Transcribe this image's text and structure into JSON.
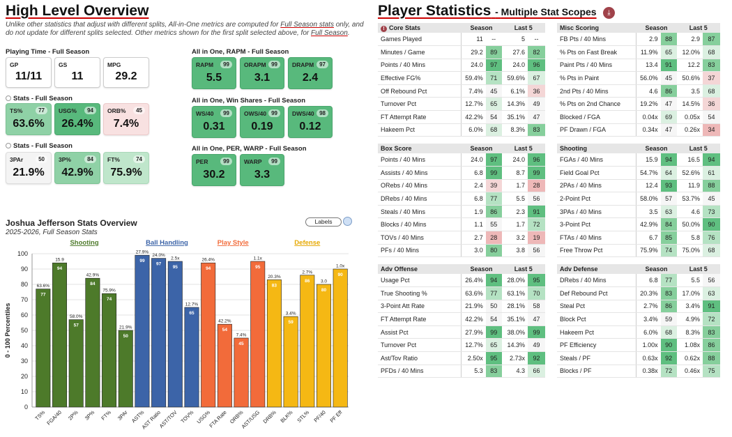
{
  "overview": {
    "title": "High Level Overview",
    "note_pre": "Unlike other statistics that adjust with different splits, All-in-One metrics are computed for ",
    "note_link1": "Full Season stats",
    "note_mid": " only, and do not update for different splits selected. Other metrics shown for the first split selected above, for ",
    "note_link2": "Full Season",
    "note_end": ".",
    "playing_time": {
      "label": "Playing Time - Full Season",
      "cards": [
        {
          "label": "GP",
          "value": "11/11"
        },
        {
          "label": "GS",
          "value": "11"
        },
        {
          "label": "MPG",
          "value": "29.2"
        }
      ]
    },
    "stats1": {
      "label": "Stats - Full Season",
      "cards": [
        {
          "label": "TS%",
          "value": "63.6%",
          "pct": "77",
          "tone": "g-mid"
        },
        {
          "label": "USG%",
          "value": "26.4%",
          "pct": "94",
          "tone": "g-dark"
        },
        {
          "label": "ORB%",
          "value": "7.4%",
          "pct": "45",
          "tone": "r-lite"
        }
      ]
    },
    "stats2": {
      "label": "Stats - Full Season",
      "cards": [
        {
          "label": "3PAr",
          "value": "21.9%",
          "pct": "50",
          "tone": "w-lite"
        },
        {
          "label": "3P%",
          "value": "42.9%",
          "pct": "84",
          "tone": "g-mid"
        },
        {
          "label": "FT%",
          "value": "75.9%",
          "pct": "74",
          "tone": "g-lite"
        }
      ]
    },
    "rapm": {
      "label": "All in One, RAPM - Full Season",
      "cards": [
        {
          "label": "RAPM",
          "value": "5.5",
          "pct": "99"
        },
        {
          "label": "ORAPM",
          "value": "3.1",
          "pct": "99"
        },
        {
          "label": "DRAPM",
          "value": "2.4",
          "pct": "97"
        }
      ]
    },
    "winshares": {
      "label": "All in One, Win Shares - Full Season",
      "cards": [
        {
          "label": "WS/40",
          "value": "0.31",
          "pct": "99"
        },
        {
          "label": "OWS/40",
          "value": "0.19",
          "pct": "99"
        },
        {
          "label": "DWS/40",
          "value": "0.12",
          "pct": "98"
        }
      ]
    },
    "perwarp": {
      "label": "All in One, PER, WARP - Full Season",
      "cards": [
        {
          "label": "PER",
          "value": "30.2",
          "pct": "99"
        },
        {
          "label": "WARP",
          "value": "3.3",
          "pct": "99"
        }
      ]
    }
  },
  "chart_header": {
    "title": "Joshua Jefferson Stats Overview",
    "subtitle": "2025-2026, Full Season Stats",
    "labels_button": "Labels"
  },
  "chart_data": {
    "type": "bar",
    "ylabel": "0 - 100 Percentiles",
    "ylim": [
      0,
      100
    ],
    "yticks": [
      0,
      10,
      20,
      30,
      40,
      50,
      60,
      70,
      80,
      90,
      100
    ],
    "groups": [
      {
        "name": "Shooting",
        "color": "#4d7a2a",
        "label_color": "#4d7a2a"
      },
      {
        "name": "Ball Handling",
        "color": "#3c64a8",
        "label_color": "#3c64a8"
      },
      {
        "name": "Play Style",
        "color": "#f26b3a",
        "label_color": "#f26b3a"
      },
      {
        "name": "Defense",
        "color": "#f5b814",
        "label_color": "#e6a800"
      }
    ],
    "categories": [
      "TS%",
      "FGA/40",
      "2P%",
      "3P%",
      "FT%",
      "3PAr",
      "AST%",
      "AST Ratio",
      "AST/TOV",
      "TOV%",
      "USG%",
      "FTA Rate",
      "ORB%",
      "AST/USG",
      "DRB%",
      "BLK%",
      "STL%",
      "PF/40",
      "PF Eff"
    ],
    "group_index": [
      0,
      0,
      0,
      0,
      0,
      0,
      1,
      1,
      1,
      1,
      2,
      2,
      2,
      2,
      3,
      3,
      3,
      3,
      3
    ],
    "values": [
      77,
      94,
      57,
      84,
      74,
      50,
      99,
      97,
      95,
      65,
      94,
      54,
      45,
      95,
      83,
      59,
      86,
      80,
      90
    ],
    "raw_labels": [
      "63.6%",
      "15.9",
      "58.0%",
      "42.9%",
      "75.9%",
      "21.9%",
      "27.9%",
      "24.0%",
      "2.5x",
      "12.7%",
      "26.4%",
      "42.2%",
      "7.4%",
      "1.1x",
      "20.3%",
      "3.4%",
      "2.7%",
      "3.0",
      "1.0x"
    ]
  },
  "player_stats": {
    "title": "Player Statistics",
    "subtitle": "Multiple Stat Scopes",
    "col_season": "Season",
    "col_last5": "Last 5",
    "tables": [
      {
        "title": "Core Stats",
        "rows": [
          [
            "Games Played",
            "11",
            "--",
            "5",
            "--"
          ],
          [
            "Minutes / Game",
            "29.2",
            "89",
            "27.6",
            "82"
          ],
          [
            "Points / 40 Mins",
            "24.0",
            "97",
            "24.0",
            "96"
          ],
          [
            "Effective FG%",
            "59.4%",
            "71",
            "59.6%",
            "67"
          ],
          [
            "Off Rebound Pct",
            "7.4%",
            "45",
            "6.1%",
            "36"
          ],
          [
            "Turnover Pct",
            "12.7%",
            "65",
            "14.3%",
            "49"
          ],
          [
            "FT Attempt Rate",
            "42.2%",
            "54",
            "35.1%",
            "47"
          ],
          [
            "Hakeem Pct",
            "6.0%",
            "68",
            "8.3%",
            "83"
          ]
        ]
      },
      {
        "title": "Misc Scoring",
        "rows": [
          [
            "FB Pts / 40 Mins",
            "2.9",
            "88",
            "2.9",
            "87"
          ],
          [
            "% Pts on Fast Break",
            "11.9%",
            "65",
            "12.0%",
            "68"
          ],
          [
            "Paint Pts / 40 Mins",
            "13.4",
            "91",
            "12.2",
            "83"
          ],
          [
            "% Pts in Paint",
            "56.0%",
            "45",
            "50.6%",
            "37"
          ],
          [
            "2nd Pts / 40 Mins",
            "4.6",
            "86",
            "3.5",
            "68"
          ],
          [
            "% Pts on 2nd Chance",
            "19.2%",
            "47",
            "14.5%",
            "36"
          ],
          [
            "Blocked / FGA",
            "0.04x",
            "69",
            "0.05x",
            "54"
          ],
          [
            "PF Drawn / FGA",
            "0.34x",
            "47",
            "0.26x",
            "34"
          ]
        ]
      },
      {
        "title": "Box Score",
        "rows": [
          [
            "Points / 40 Mins",
            "24.0",
            "97",
            "24.0",
            "96"
          ],
          [
            "Assists / 40 Mins",
            "6.8",
            "99",
            "8.7",
            "99"
          ],
          [
            "ORebs / 40 Mins",
            "2.4",
            "39",
            "1.7",
            "28"
          ],
          [
            "DRebs / 40 Mins",
            "6.8",
            "77",
            "5.5",
            "56"
          ],
          [
            "Steals / 40 Mins",
            "1.9",
            "86",
            "2.3",
            "91"
          ],
          [
            "Blocks / 40 Mins",
            "1.1",
            "55",
            "1.7",
            "72"
          ],
          [
            "TOVs / 40 Mins",
            "2.7",
            "28",
            "3.2",
            "19"
          ],
          [
            "PFs / 40 Mins",
            "3.0",
            "80",
            "3.8",
            "56"
          ]
        ]
      },
      {
        "title": "Shooting",
        "rows": [
          [
            "FGAs / 40 Mins",
            "15.9",
            "94",
            "16.5",
            "94"
          ],
          [
            "Field Goal Pct",
            "54.7%",
            "64",
            "52.6%",
            "61"
          ],
          [
            "2PAs / 40 Mins",
            "12.4",
            "93",
            "11.9",
            "88"
          ],
          [
            "2-Point Pct",
            "58.0%",
            "57",
            "53.7%",
            "45"
          ],
          [
            "3PAs / 40 Mins",
            "3.5",
            "63",
            "4.6",
            "73"
          ],
          [
            "3-Point Pct",
            "42.9%",
            "84",
            "50.0%",
            "90"
          ],
          [
            "FTAs / 40 Mins",
            "6.7",
            "85",
            "5.8",
            "76"
          ],
          [
            "Free Throw Pct",
            "75.9%",
            "74",
            "75.0%",
            "68"
          ]
        ]
      },
      {
        "title": "Adv Offense",
        "rows": [
          [
            "Usage Pct",
            "26.4%",
            "94",
            "28.0%",
            "95"
          ],
          [
            "True Shooting %",
            "63.6%",
            "77",
            "63.1%",
            "70"
          ],
          [
            "3-Point Att Rate",
            "21.9%",
            "50",
            "28.1%",
            "58"
          ],
          [
            "FT Attempt Rate",
            "42.2%",
            "54",
            "35.1%",
            "47"
          ],
          [
            "Assist Pct",
            "27.9%",
            "99",
            "38.0%",
            "99"
          ],
          [
            "Turnover Pct",
            "12.7%",
            "65",
            "14.3%",
            "49"
          ],
          [
            "Ast/Tov Ratio",
            "2.50x",
            "95",
            "2.73x",
            "92"
          ],
          [
            "PFDs / 40 Mins",
            "5.3",
            "83",
            "4.3",
            "66"
          ]
        ]
      },
      {
        "title": "Adv Defense",
        "rows": [
          [
            "DRebs / 40 Mins",
            "6.8",
            "77",
            "5.5",
            "56"
          ],
          [
            "Def Rebound Pct",
            "20.3%",
            "83",
            "17.0%",
            "63"
          ],
          [
            "Steal Pct",
            "2.7%",
            "86",
            "3.4%",
            "91"
          ],
          [
            "Block Pct",
            "3.4%",
            "59",
            "4.9%",
            "72"
          ],
          [
            "Hakeem Pct",
            "6.0%",
            "68",
            "8.3%",
            "83"
          ],
          [
            "PF Efficiency",
            "1.00x",
            "90",
            "1.08x",
            "86"
          ],
          [
            "Steals / PF",
            "0.63x",
            "92",
            "0.62x",
            "88"
          ],
          [
            "Blocks / PF",
            "0.38x",
            "72",
            "0.46x",
            "75"
          ]
        ]
      }
    ]
  }
}
